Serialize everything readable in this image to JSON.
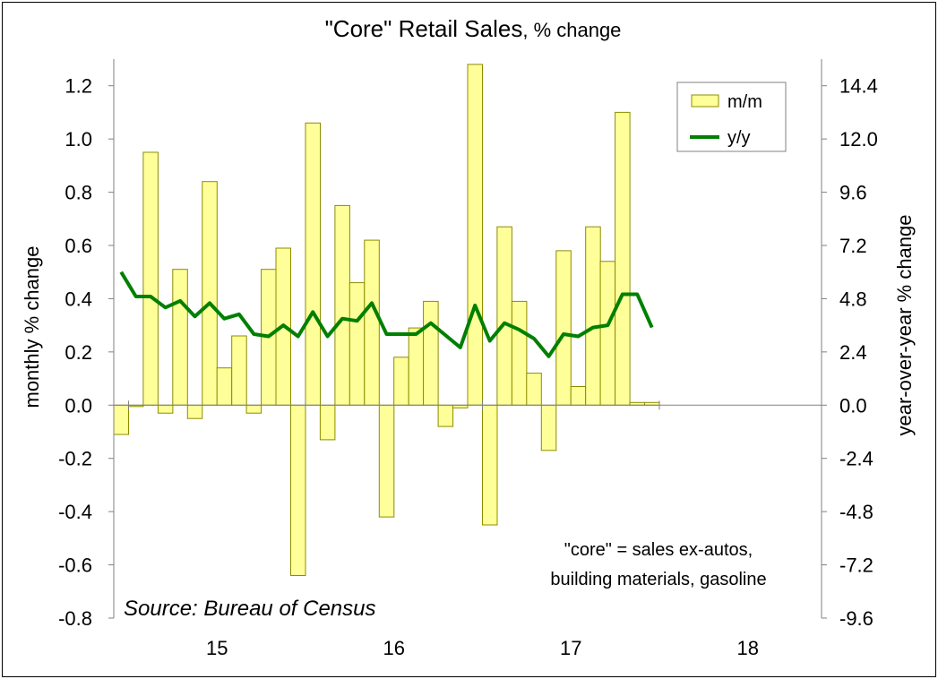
{
  "chart_data": {
    "type": "bar+line",
    "title": "\"Core\" Retail Sales",
    "title_suffix": ", % change",
    "ylabel": "monthly % change",
    "y2label": "year-over-year % change",
    "ylim": [
      -0.8,
      1.3
    ],
    "y2lim": [
      -9.6,
      15.6
    ],
    "yticks": [
      "-0.8",
      "-0.6",
      "-0.4",
      "-0.2",
      "0.0",
      "0.2",
      "0.4",
      "0.6",
      "0.8",
      "1.0",
      "1.2"
    ],
    "y2ticks": [
      "-9.6",
      "-7.2",
      "-4.8",
      "-2.4",
      "0.0",
      "2.4",
      "4.8",
      "7.2",
      "9.6",
      "12.0",
      "14.4"
    ],
    "xticks": [
      "15",
      "16",
      "17",
      "18"
    ],
    "grid": false,
    "legend_position": "top-right",
    "legend": [
      "m/m",
      "y/y"
    ],
    "months_per_year": 12,
    "first_month": "2014-12",
    "series": [
      {
        "name": "m/m",
        "style": "bar",
        "axis": "left",
        "values": [
          -0.11,
          0.0,
          0.95,
          -0.03,
          0.51,
          -0.05,
          0.84,
          0.14,
          0.26,
          -0.03,
          0.51,
          0.59,
          -0.64,
          1.06,
          -0.13,
          0.75,
          0.46,
          0.62,
          -0.42,
          0.18,
          0.29,
          0.39,
          -0.08,
          -0.01,
          1.28,
          -0.45,
          0.67,
          0.39,
          0.12,
          -0.17,
          0.58,
          0.07,
          0.67,
          0.54,
          1.1,
          0.01,
          0.01
        ]
      },
      {
        "name": "y/y",
        "style": "line",
        "axis": "right",
        "values": [
          6.0,
          4.9,
          4.9,
          4.4,
          4.7,
          4.0,
          4.6,
          3.9,
          4.1,
          3.2,
          3.1,
          3.6,
          3.1,
          4.2,
          3.1,
          3.9,
          3.8,
          4.6,
          3.2,
          3.2,
          3.2,
          3.7,
          null,
          2.6,
          4.5,
          2.9,
          3.7,
          3.4,
          3.0,
          2.2,
          3.2,
          3.1,
          3.5,
          3.6,
          5.0,
          5.0,
          3.5
        ]
      }
    ],
    "annotations": {
      "source": "Source: Bureau of Census",
      "core_note_1": "\"core\" = sales ex-autos,",
      "core_note_2": "building materials, gasoline"
    },
    "colors": {
      "bar_fill": "#FFFF99",
      "bar_stroke": "#8C8C00",
      "line": "#008000",
      "axis": "#808080"
    }
  }
}
